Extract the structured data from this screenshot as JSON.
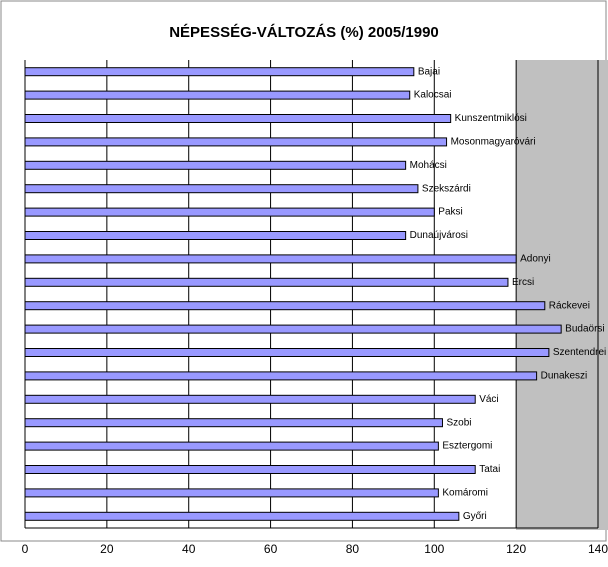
{
  "chart_data": {
    "type": "bar",
    "orientation": "horizontal",
    "title": "NÉPESSÉG-VÁLTOZÁS (%) 2005/1990",
    "categories": [
      "Bajai",
      "Kalocsai",
      "Kunszentmiklósi",
      "Mosonmagyaróvári",
      "Mohácsi",
      "Szekszárdi",
      "Paksi",
      "Dunaújvárosi",
      "Adonyi",
      "Ercsi",
      "Ráckevei",
      "Budaörsi",
      "Szentendrei",
      "Dunakeszi",
      "Váci",
      "Szobi",
      "Esztergomi",
      "Tatai",
      "Komáromi",
      "Győri"
    ],
    "values": [
      95,
      94,
      104,
      103,
      93,
      96,
      100,
      93,
      120,
      118,
      127,
      131,
      128,
      125,
      110,
      102,
      101,
      110,
      101,
      106
    ],
    "color": "#9999ff",
    "xlim": [
      0,
      140
    ],
    "xticks": [
      0,
      20,
      40,
      60,
      80,
      100,
      120,
      140
    ],
    "grid": true
  }
}
